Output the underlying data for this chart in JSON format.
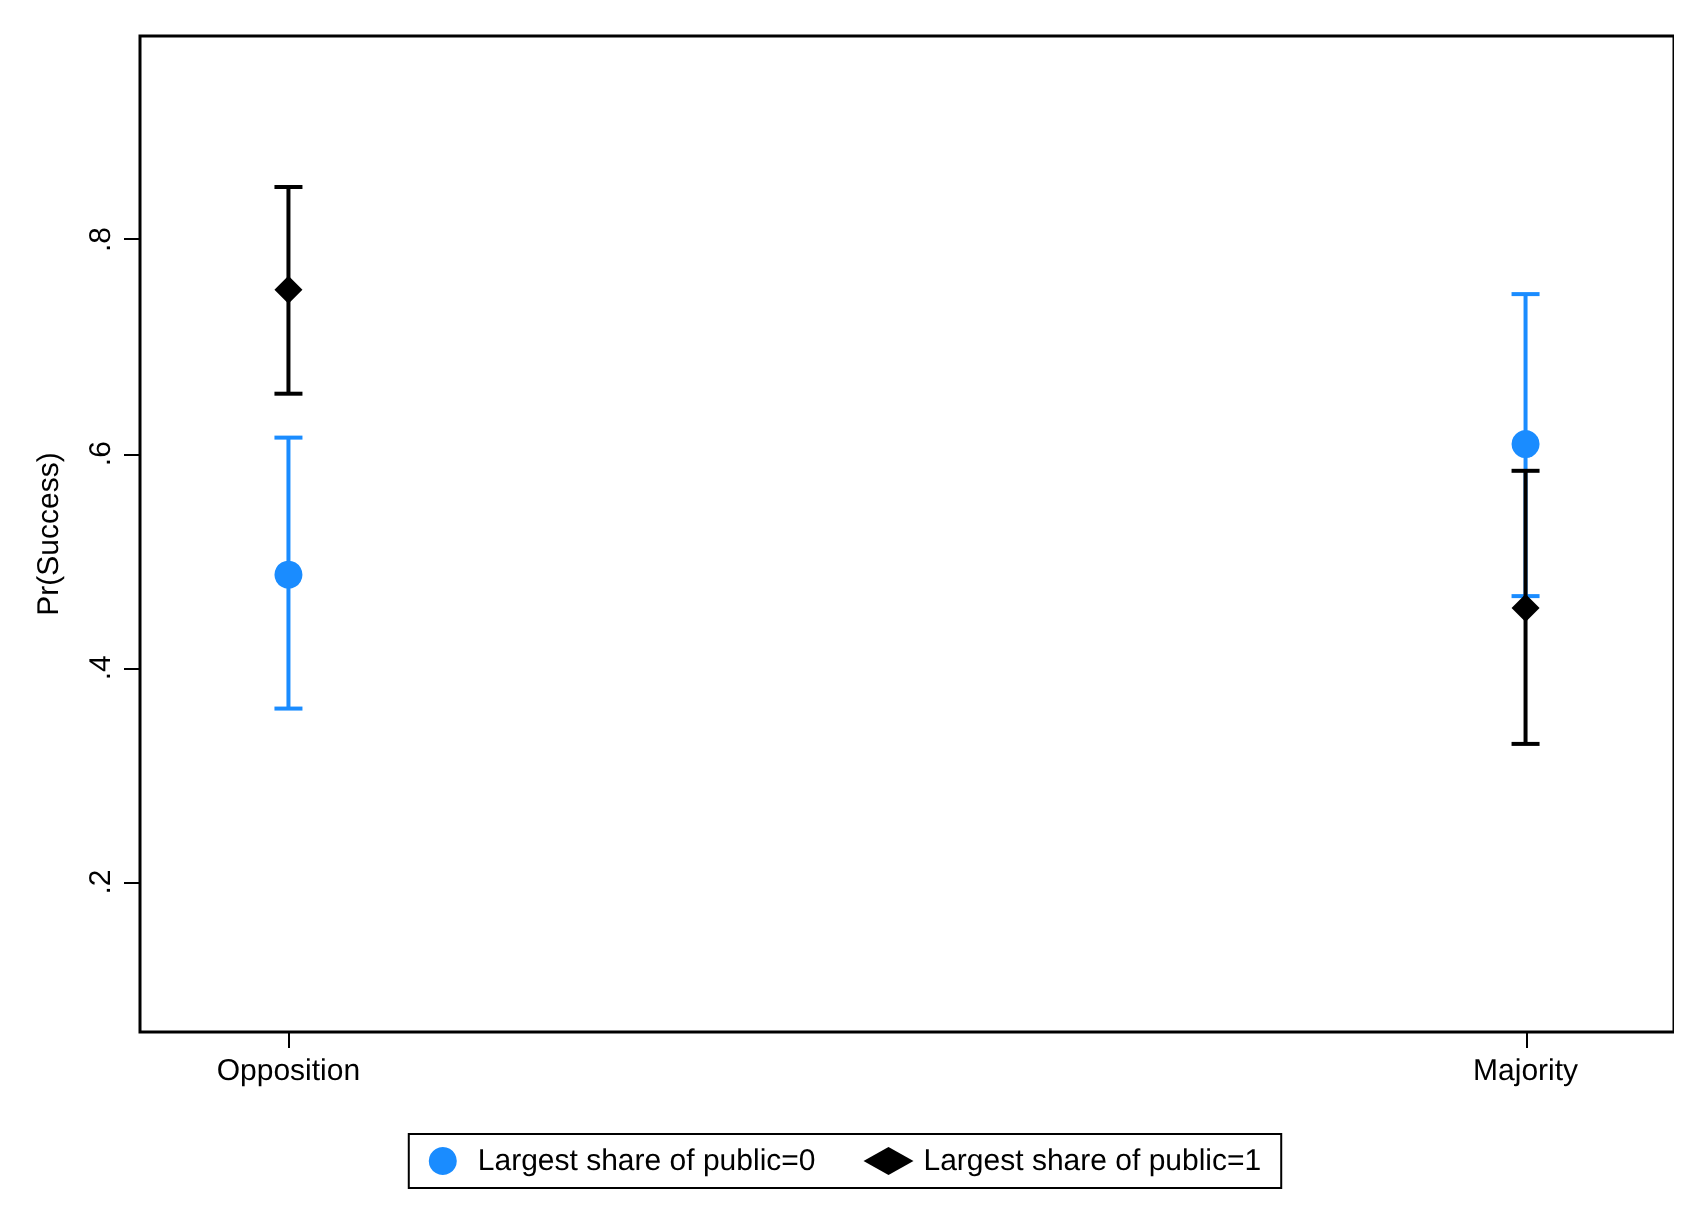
{
  "chart_data": {
    "type": "scatter",
    "ylabel": "Pr(Success)",
    "categories": [
      "Opposition",
      "Majority"
    ],
    "series": [
      {
        "name": "Largest share of public=0",
        "color": "#1a8cff",
        "marker": "circle",
        "values": [
          0.487,
          0.609
        ],
        "errors": [
          [
            0.362,
            0.615
          ],
          [
            0.467,
            0.749
          ]
        ]
      },
      {
        "name": "Largest share of public=1",
        "color": "#000000",
        "marker": "diamond",
        "values": [
          0.753,
          0.456
        ],
        "errors": [
          [
            0.656,
            0.849
          ],
          [
            0.329,
            0.584
          ]
        ]
      }
    ],
    "ylim": [
      0.06,
      0.99
    ],
    "yticks": [
      {
        "value": 0.2,
        "label": ".2"
      },
      {
        "value": 0.4,
        "label": ".4"
      },
      {
        "value": 0.6,
        "label": ".6"
      },
      {
        "value": 0.8,
        "label": ".8"
      }
    ],
    "grid": false,
    "legend": "bottom"
  }
}
